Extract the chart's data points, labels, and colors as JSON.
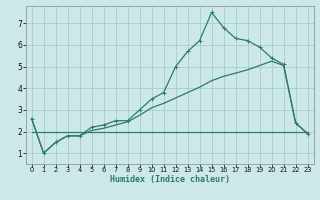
{
  "xlabel": "Humidex (Indice chaleur)",
  "bg_color": "#cce8e8",
  "grid_color": "#aacccc",
  "line_color": "#2d7a6e",
  "xlim": [
    -0.5,
    23.5
  ],
  "ylim": [
    0.5,
    7.8
  ],
  "yticks": [
    1,
    2,
    3,
    4,
    5,
    6,
    7
  ],
  "xticks": [
    0,
    1,
    2,
    3,
    4,
    5,
    6,
    7,
    8,
    9,
    10,
    11,
    12,
    13,
    14,
    15,
    16,
    17,
    18,
    19,
    20,
    21,
    22,
    23
  ],
  "line1_x": [
    0,
    1,
    2,
    3,
    4,
    5,
    6,
    7,
    8,
    9,
    10,
    11,
    12,
    13,
    14,
    15,
    16,
    17,
    18,
    19,
    20,
    21,
    22,
    23
  ],
  "line1_y": [
    2.6,
    1.0,
    1.5,
    1.8,
    1.8,
    2.2,
    2.3,
    2.5,
    2.5,
    3.0,
    3.5,
    3.8,
    5.0,
    5.7,
    6.2,
    7.5,
    6.8,
    6.3,
    6.2,
    5.9,
    5.4,
    5.1,
    2.4,
    1.9
  ],
  "line2_x": [
    0,
    1,
    2,
    3,
    4,
    5,
    6,
    7,
    8,
    9,
    10,
    11,
    12,
    13,
    14,
    15,
    16,
    17,
    18,
    19,
    20,
    21,
    22,
    23
  ],
  "line2_y": [
    2.6,
    1.0,
    1.5,
    1.8,
    1.8,
    2.05,
    2.15,
    2.3,
    2.45,
    2.75,
    3.1,
    3.3,
    3.55,
    3.8,
    4.05,
    4.35,
    4.55,
    4.7,
    4.85,
    5.05,
    5.25,
    5.05,
    2.4,
    1.9
  ],
  "line3_x": [
    0,
    23
  ],
  "line3_y": [
    2.0,
    2.0
  ],
  "linewidth": 0.9
}
